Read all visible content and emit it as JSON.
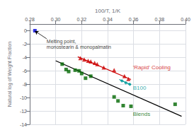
{
  "chart_data": {
    "type": "scatter",
    "xlabel": "100/T, 1/K",
    "ylabel": "Natural log of Weight Fraction",
    "xlim": [
      0.28,
      0.4
    ],
    "ylim": [
      -14,
      1
    ],
    "xticks": [
      0.28,
      {
        "value": 0.3,
        "label": "0.30"
      },
      0.32,
      0.34,
      0.36,
      0.38,
      {
        "value": 0.4,
        "label": "0.40"
      }
    ],
    "yticks": [
      0,
      -2,
      -4,
      -6,
      -8,
      -10,
      -12,
      -14
    ],
    "grid": true,
    "series": [
      {
        "type": "scatter",
        "color": "#0000dd",
        "marker": "square",
        "x": [
          0.284
        ],
        "values": [
          0.0
        ]
      },
      {
        "type": "line",
        "color": "#000000",
        "line_style": "solid",
        "x": [
          0.3,
          0.397
        ],
        "values": [
          -4.5,
          -12.8
        ]
      },
      {
        "type": "line",
        "color": "#cc0000",
        "line_style": "solid",
        "x": [
          0.317,
          0.358
        ],
        "values": [
          -3.9,
          -7.3
        ]
      },
      {
        "type": "line",
        "color": "#009999",
        "line_style": "solid",
        "x": [
          0.349,
          0.358
        ],
        "values": [
          -7.3,
          -8.1
        ]
      },
      {
        "type": "scatter",
        "color": "#cc0000",
        "marker": "triangle",
        "x": [
          0.319,
          0.322,
          0.325,
          0.327,
          0.33,
          0.332,
          0.337,
          0.345,
          0.353,
          0.356
        ],
        "values": [
          -4.1,
          -4.3,
          -4.5,
          -4.6,
          -4.8,
          -5.0,
          -5.5,
          -5.9,
          -6.8,
          -7.2
        ]
      },
      {
        "type": "scatter",
        "color": "#009999",
        "marker": "diamond",
        "x": [
          0.351,
          0.354,
          0.357
        ],
        "values": [
          -7.5,
          -7.8,
          -8.0
        ]
      },
      {
        "type": "scatter",
        "color": "#006600",
        "marker": "square",
        "x": [
          0.305,
          0.308,
          0.31,
          0.315,
          0.318,
          0.32,
          0.323,
          0.327,
          0.345,
          0.348,
          0.352,
          0.358,
          0.392
        ],
        "values": [
          -5.0,
          -5.8,
          -6.1,
          -5.9,
          -6.0,
          -6.4,
          -7.1,
          -6.8,
          -9.9,
          -10.5,
          -11.2,
          -11.3,
          -11.0
        ]
      }
    ],
    "annotations": [
      {
        "text": "Melting point,\nmonostearin & monopalmatin",
        "x": 0.293,
        "y": -1.2,
        "arrow_x": 0.284,
        "arrow_y": -0.05,
        "color": "#000000"
      },
      {
        "text": "'Rapid' Cooling",
        "x": 0.3595,
        "y": -5.5,
        "color": "#cc0000"
      },
      {
        "text": "B100",
        "x": 0.3595,
        "y": -8.6,
        "color": "#009999"
      },
      {
        "text": "Blends",
        "x": 0.3595,
        "y": -12.5,
        "color": "#006600"
      }
    ]
  }
}
